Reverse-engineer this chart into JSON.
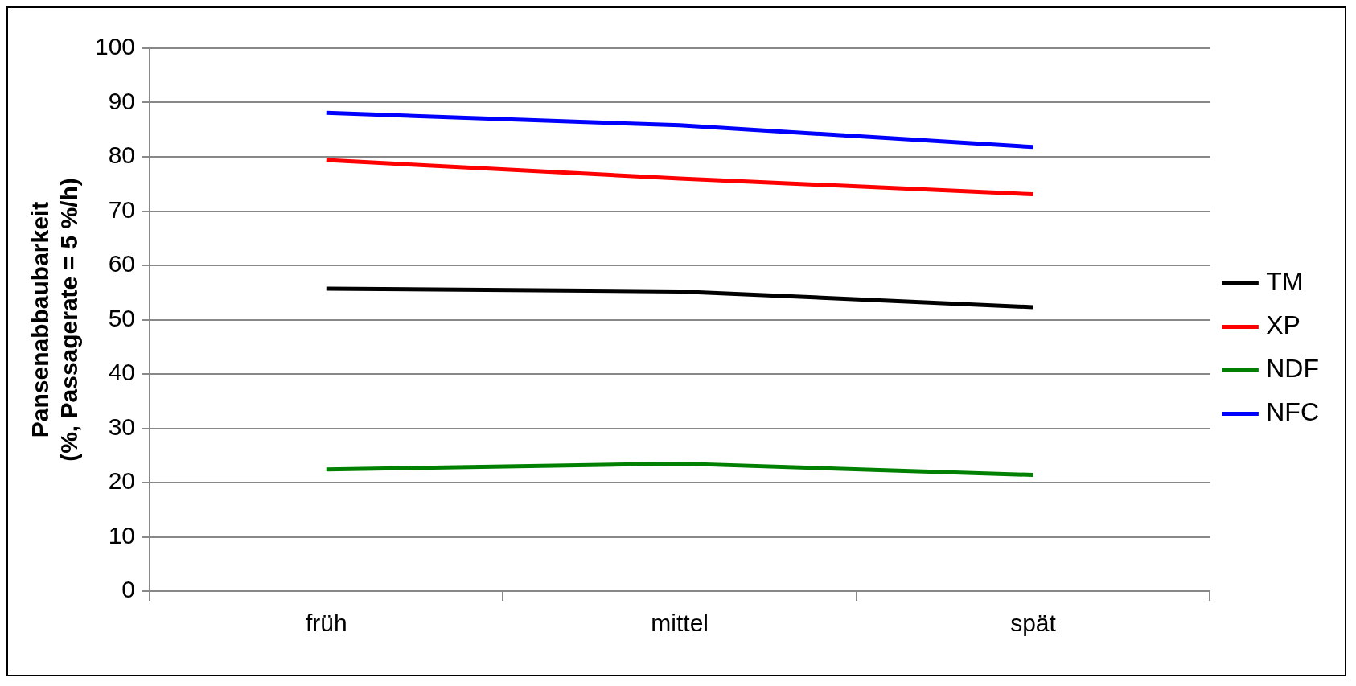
{
  "chart_data": {
    "type": "line",
    "ylabel": "Pansenabbaubarkeit\n(%, Passagerate = 5 %/h)",
    "categories": [
      "früh",
      "mittel",
      "spät"
    ],
    "series": [
      {
        "name": "TM",
        "color": "#000000",
        "values": [
          55.7,
          55.2,
          52.3
        ]
      },
      {
        "name": "XP",
        "color": "#ff0000",
        "values": [
          79.4,
          76.0,
          73.1
        ]
      },
      {
        "name": "NDF",
        "color": "#008000",
        "values": [
          22.4,
          23.5,
          21.4
        ]
      },
      {
        "name": "NFC",
        "color": "#0000ff",
        "values": [
          88.1,
          85.8,
          81.8
        ]
      }
    ],
    "ylim": [
      0,
      100
    ],
    "yticks": [
      0,
      10,
      20,
      30,
      40,
      50,
      60,
      70,
      80,
      90,
      100
    ],
    "grid": "y",
    "legend": "right",
    "marker": "none",
    "line_style": "solid"
  }
}
